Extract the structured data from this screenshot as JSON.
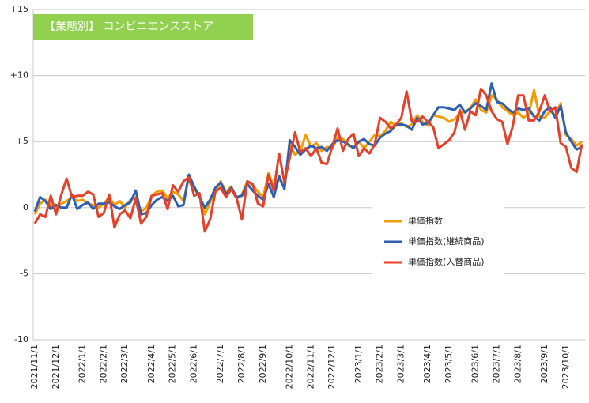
{
  "chart_data": {
    "type": "line",
    "title": "【業態別】 コンビニエンスストア",
    "categories": [
      "2021/11/1",
      null,
      null,
      null,
      "2021/12/1",
      null,
      null,
      null,
      null,
      "2022/1/1",
      null,
      null,
      null,
      "2022/2/1",
      null,
      null,
      null,
      "2022/3/1",
      null,
      null,
      null,
      null,
      "2022/4/1",
      null,
      null,
      null,
      "2022/5/1",
      null,
      null,
      null,
      "2022/6/1",
      null,
      null,
      null,
      null,
      "2022/7/1",
      null,
      null,
      null,
      "2022/8/1",
      null,
      null,
      null,
      "2022/9/1",
      null,
      null,
      null,
      null,
      "2022/10/1",
      null,
      null,
      null,
      "2022/11/1",
      null,
      null,
      null,
      "2022/12/1",
      null,
      null,
      null,
      null,
      "2023/1/1",
      null,
      null,
      null,
      "2023/2/1",
      null,
      null,
      null,
      "2023/3/1",
      null,
      null,
      null,
      null,
      "2023/4/1",
      null,
      null,
      null,
      "2023/5/1",
      null,
      null,
      null,
      null,
      "2023/6/1",
      null,
      null,
      null,
      "2023/7/1",
      null,
      null,
      null,
      "2023/8/1",
      null,
      null,
      null,
      null,
      "2023/9/1",
      null,
      null,
      null,
      "2023/10/1",
      null,
      null,
      null
    ],
    "series": [
      {
        "name": "単価指数",
        "color": "#f59c00",
        "values": [
          -0.5,
          0.3,
          0.6,
          0.2,
          0.0,
          0.3,
          0.5,
          0.8,
          0.5,
          0.6,
          0.3,
          0.2,
          0.0,
          0.3,
          0.8,
          0.2,
          0.5,
          0.0,
          0.6,
          0.8,
          -0.3,
          0.0,
          0.9,
          1.2,
          1.3,
          0.7,
          1.2,
          1.0,
          0.5,
          2.3,
          1.4,
          0.9,
          -0.5,
          0.4,
          1.2,
          2.0,
          1.2,
          1.6,
          0.7,
          1.0,
          2.0,
          1.7,
          1.2,
          0.8,
          2.6,
          1.6,
          2.2,
          1.5,
          4.8,
          4.0,
          4.3,
          5.5,
          4.6,
          4.9,
          4.3,
          4.6,
          4.5,
          5.3,
          5.2,
          4.7,
          4.6,
          5.0,
          4.5,
          5.0,
          5.5,
          5.4,
          5.8,
          6.5,
          6.2,
          6.4,
          6.1,
          6.3,
          7.0,
          6.5,
          6.2,
          7.0,
          6.9,
          6.8,
          6.5,
          6.7,
          7.1,
          7.3,
          7.5,
          8.2,
          7.4,
          7.2,
          8.5,
          8.2,
          7.6,
          7.3,
          7.0,
          7.2,
          6.8,
          7.1,
          8.9,
          6.9,
          6.8,
          7.3,
          7.0,
          7.9,
          5.5,
          5.2,
          4.7,
          5.0
        ]
      },
      {
        "name": "単価指数(継続商品)",
        "color": "#2d5fb3",
        "values": [
          -0.3,
          0.8,
          0.5,
          -0.1,
          0.2,
          0.0,
          0.0,
          1.0,
          -0.1,
          0.2,
          0.4,
          -0.1,
          0.3,
          0.3,
          0.4,
          0.1,
          -0.1,
          0.2,
          0.4,
          1.3,
          -0.5,
          -0.4,
          0.2,
          0.6,
          0.8,
          0.5,
          0.9,
          0.1,
          0.2,
          2.5,
          1.6,
          0.8,
          0.0,
          0.6,
          1.5,
          1.9,
          1.0,
          1.5,
          0.8,
          0.9,
          1.8,
          1.3,
          0.9,
          0.6,
          1.8,
          0.8,
          2.4,
          1.4,
          5.1,
          4.6,
          4.0,
          4.4,
          4.7,
          4.5,
          4.6,
          4.3,
          4.8,
          5.1,
          5.0,
          4.8,
          4.5,
          5.0,
          5.2,
          4.8,
          4.7,
          5.3,
          5.6,
          5.8,
          6.3,
          6.3,
          6.2,
          5.9,
          6.8,
          6.3,
          6.4,
          7.0,
          7.6,
          7.6,
          7.5,
          7.4,
          7.8,
          7.2,
          7.5,
          7.9,
          7.7,
          7.4,
          9.4,
          8.0,
          7.9,
          7.5,
          7.2,
          7.5,
          7.4,
          7.5,
          6.9,
          6.6,
          7.3,
          7.6,
          6.8,
          7.7,
          5.7,
          5.0,
          4.4,
          4.6
        ]
      },
      {
        "name": "単価指数(入替商品)",
        "color": "#e5402a",
        "values": [
          -1.2,
          -0.5,
          -0.7,
          0.9,
          -0.5,
          1.0,
          2.2,
          0.8,
          0.9,
          0.9,
          1.2,
          1.0,
          -0.7,
          -0.4,
          1.0,
          -1.5,
          -0.5,
          -0.2,
          -0.8,
          0.7,
          -1.2,
          -0.7,
          0.9,
          1.0,
          1.1,
          -0.1,
          1.7,
          1.2,
          2.0,
          2.3,
          0.9,
          1.1,
          -1.8,
          -0.9,
          1.2,
          1.5,
          0.8,
          1.4,
          0.7,
          -0.9,
          2.0,
          1.8,
          0.3,
          0.1,
          2.5,
          1.3,
          4.1,
          1.9,
          3.8,
          5.7,
          4.2,
          4.5,
          3.9,
          4.5,
          3.4,
          3.3,
          4.6,
          6.0,
          4.3,
          5.2,
          5.6,
          3.9,
          4.5,
          4.1,
          4.8,
          6.8,
          6.5,
          6.0,
          6.3,
          6.8,
          8.8,
          6.5,
          6.5,
          6.9,
          6.5,
          6.1,
          4.5,
          4.8,
          5.1,
          5.7,
          7.4,
          5.9,
          7.3,
          7.0,
          9.0,
          8.5,
          7.3,
          6.7,
          6.5,
          4.8,
          6.2,
          8.5,
          8.5,
          6.6,
          6.6,
          7.3,
          8.5,
          7.3,
          7.6,
          4.9,
          4.6,
          3.0,
          2.7,
          4.8
        ]
      }
    ],
    "ylim": [
      -10,
      15
    ],
    "yticks": [
      -10,
      -5,
      0,
      {
        "value": 5,
        "label": "+5"
      },
      {
        "value": 10,
        "label": "+10"
      },
      {
        "value": 15,
        "label": "+15"
      }
    ],
    "grid": true,
    "legend": "right"
  }
}
